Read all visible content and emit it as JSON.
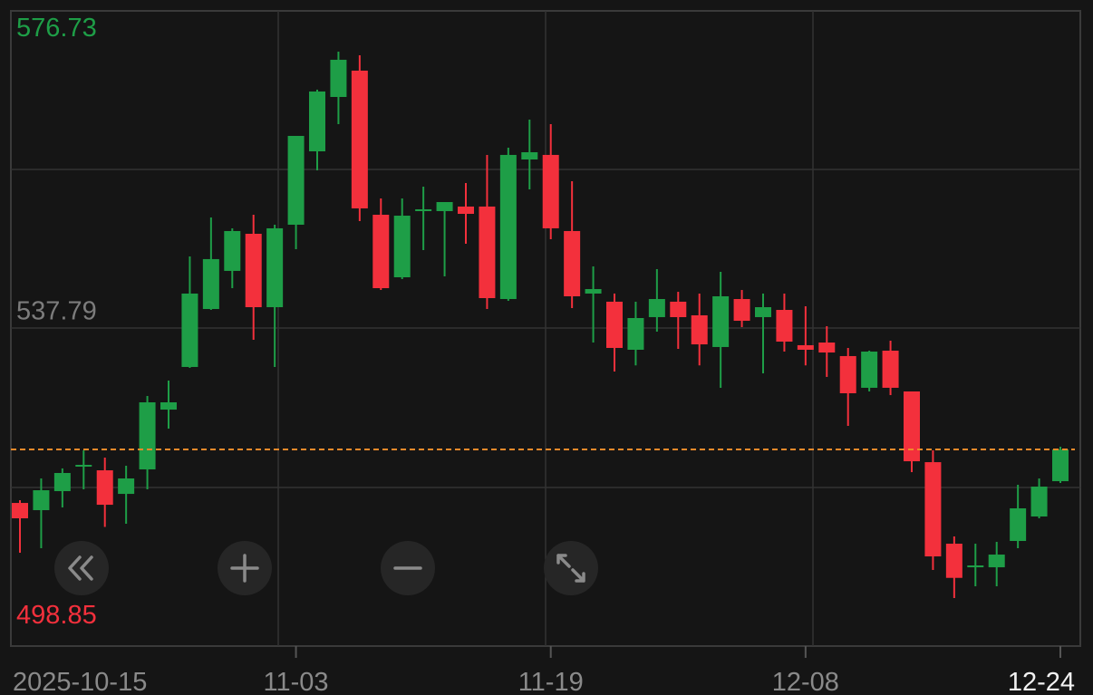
{
  "chart_data": {
    "type": "candlestick",
    "x": [
      "2025-10-15",
      null,
      null,
      null,
      null,
      null,
      null,
      null,
      null,
      null,
      null,
      null,
      null,
      "11-03",
      null,
      null,
      null,
      null,
      null,
      null,
      null,
      null,
      null,
      null,
      null,
      "11-19",
      null,
      null,
      null,
      null,
      null,
      null,
      null,
      null,
      null,
      null,
      null,
      "12-08",
      null,
      null,
      null,
      null,
      null,
      null,
      null,
      null,
      null,
      null,
      null,
      "12-24"
    ],
    "open": [
      512.41,
      511.38,
      514.09,
      517.58,
      517.06,
      513.7,
      517.19,
      525.71,
      531.79,
      540.05,
      545.48,
      550.77,
      540.31,
      552.06,
      562.52,
      570.27,
      574.02,
      553.48,
      544.57,
      554.0,
      554.0,
      554.65,
      554.65,
      541.47,
      561.36,
      562.01,
      551.16,
      542.25,
      541.09,
      534.24,
      538.89,
      541.09,
      539.15,
      534.63,
      541.47,
      538.89,
      539.92,
      534.89,
      535.27,
      533.34,
      528.82,
      534.11,
      528.3,
      518.22,
      506.6,
      503.24,
      503.24,
      506.99,
      510.48,
      515.51
    ],
    "high": [
      512.8,
      515.9,
      517.33,
      519.9,
      518.87,
      517.71,
      527.65,
      529.85,
      547.54,
      553.1,
      551.55,
      553.48,
      552.06,
      564.72,
      571.31,
      576.73,
      576.21,
      555.81,
      555.81,
      557.49,
      555.29,
      558.0,
      562.01,
      563.04,
      567.04,
      566.4,
      558.26,
      546.12,
      542.25,
      541.09,
      545.73,
      542.5,
      542.25,
      545.35,
      542.76,
      542.25,
      542.25,
      540.44,
      537.6,
      534.5,
      534.11,
      535.53,
      528.3,
      519.9,
      507.64,
      506.6,
      506.86,
      515.0,
      515.9,
      520.42
    ],
    "low": [
      505.31,
      505.96,
      511.77,
      514.35,
      508.99,
      509.44,
      514.35,
      523.0,
      531.66,
      539.92,
      543.02,
      535.66,
      531.79,
      548.57,
      559.81,
      566.4,
      552.58,
      542.76,
      544.31,
      548.45,
      544.7,
      549.35,
      540.05,
      541.21,
      557.1,
      550.0,
      540.18,
      535.27,
      531.14,
      532.01,
      536.82,
      534.37,
      532.01,
      528.82,
      537.47,
      530.88,
      533.98,
      532.01,
      530.37,
      523.39,
      528.3,
      527.78,
      516.8,
      502.86,
      498.85,
      500.53,
      500.53,
      505.96,
      510.22,
      515.26
    ],
    "close": [
      510.22,
      514.22,
      516.68,
      517.84,
      512.15,
      515.9,
      526.75,
      526.75,
      542.25,
      547.16,
      551.16,
      540.31,
      551.55,
      564.72,
      571.05,
      575.57,
      554.39,
      543.02,
      553.35,
      554.26,
      555.29,
      553.61,
      541.6,
      562.01,
      562.39,
      551.55,
      541.86,
      542.89,
      534.5,
      538.76,
      541.47,
      538.89,
      535.01,
      541.86,
      538.37,
      540.31,
      535.4,
      534.24,
      533.85,
      528.04,
      533.98,
      528.82,
      518.35,
      504.79,
      501.73,
      503.5,
      505.05,
      511.64,
      514.74,
      520.03
    ],
    "up_color": "#1e9e47",
    "down_color": "#f3303c",
    "last_price_line_color": "#f08a2a",
    "ylim": [
      492.14,
      582.28
    ],
    "yticks": [
      576.73,
      537.79,
      498.85
    ]
  }
}
